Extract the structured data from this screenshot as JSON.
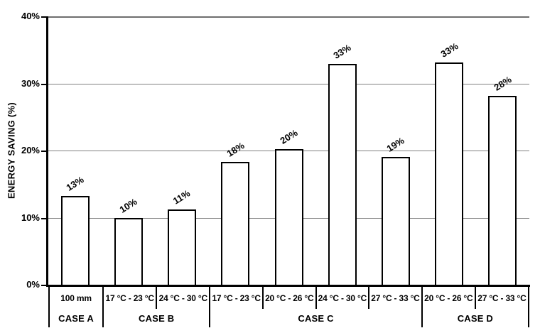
{
  "chart_data": {
    "type": "bar",
    "title": "",
    "ylabel": "ENERGY SAVING (%)",
    "xlabel": "",
    "ylim": [
      0,
      40
    ],
    "ytick_values": [
      0,
      10,
      20,
      30,
      40
    ],
    "ytick_labels": [
      "0%",
      "10%",
      "20%",
      "30%",
      "40%"
    ],
    "grid": "horizontal gray lines at each 10%",
    "legend": "none",
    "groups": [
      {
        "name": "CASE A",
        "bars": [
          {
            "category": "100 mm",
            "value": 13.2,
            "label": "13%"
          }
        ]
      },
      {
        "name": "CASE B",
        "bars": [
          {
            "category": "17 °C - 23 °C",
            "value": 9.9,
            "label": "10%"
          },
          {
            "category": "24 °C - 30 °C",
            "value": 11.2,
            "label": "11%"
          }
        ]
      },
      {
        "name": "CASE C",
        "bars": [
          {
            "category": "17 °C - 23 °C",
            "value": 18.3,
            "label": "18%"
          },
          {
            "category": "20 °C - 26 °C",
            "value": 20.2,
            "label": "20%"
          },
          {
            "category": "24 °C - 30 °C",
            "value": 32.9,
            "label": "33%"
          },
          {
            "category": "27 °C - 33 °C",
            "value": 19.0,
            "label": "19%"
          }
        ]
      },
      {
        "name": "CASE D",
        "bars": [
          {
            "category": "20 °C - 26 °C",
            "value": 33.1,
            "label": "33%"
          },
          {
            "category": "27 °C - 33 °C",
            "value": 28.2,
            "label": "28%"
          }
        ]
      }
    ],
    "colors": {
      "background": "#ffffff",
      "bar_fill": "#ffffff",
      "bar_border": "#000000",
      "gridline": "#808080",
      "axis": "#000000",
      "text": "#000000"
    }
  }
}
